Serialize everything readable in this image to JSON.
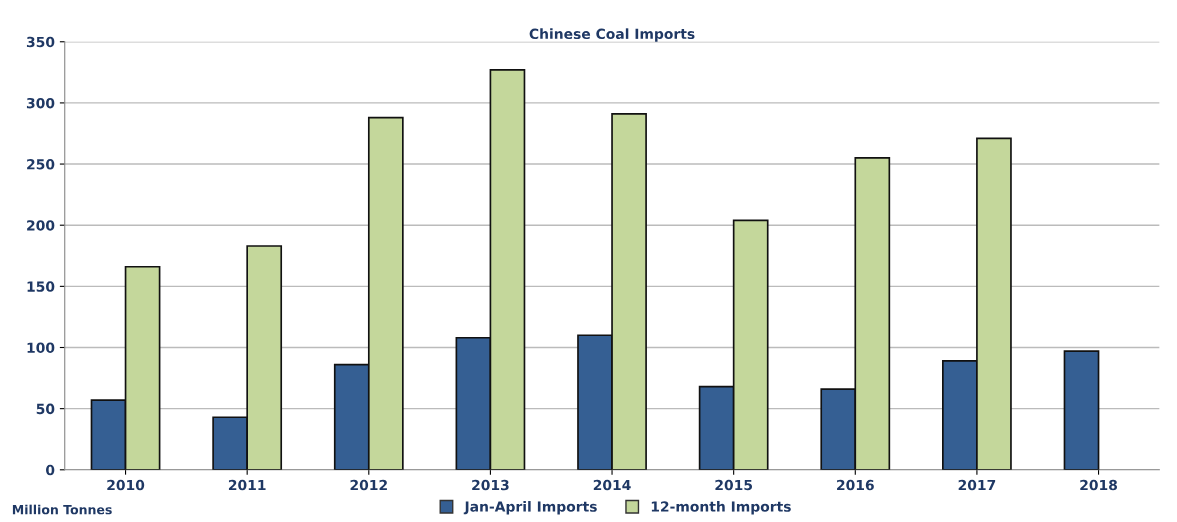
{
  "chart_data": {
    "type": "bar",
    "title": "Chinese Coal Imports",
    "categories": [
      "2010",
      "2011",
      "2012",
      "2013",
      "2014",
      "2015",
      "2016",
      "2017",
      "2018"
    ],
    "series": [
      {
        "name": "Jan-April Imports",
        "color": "#355f93",
        "values": [
          57,
          43,
          86,
          108,
          110,
          68,
          66,
          89,
          97
        ]
      },
      {
        "name": "12-month Imports",
        "color": "#c4d79b",
        "values": [
          166,
          183,
          288,
          327,
          291,
          204,
          255,
          271,
          null
        ]
      }
    ],
    "ylim": [
      0,
      350
    ],
    "yticks": [
      0,
      50,
      100,
      150,
      200,
      250,
      300,
      350
    ],
    "grid": "y",
    "legend": "bottom",
    "annotations": [
      "Million Tonnes"
    ]
  }
}
